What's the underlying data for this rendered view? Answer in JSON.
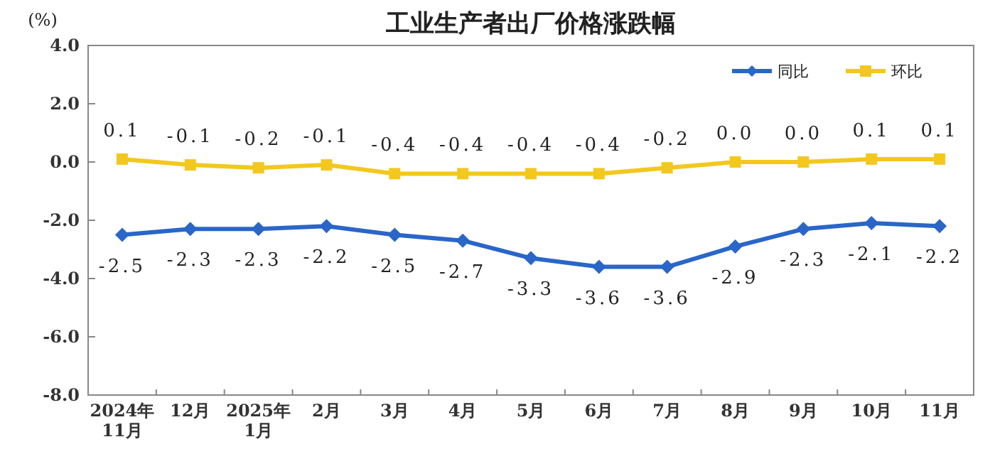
{
  "chart_data": {
    "type": "line",
    "title": "工业生产者出厂价格涨跌幅",
    "ylabel": "(%)",
    "categories": [
      "2024年\n11月",
      "12月",
      "2025年\n1月",
      "2月",
      "3月",
      "4月",
      "5月",
      "6月",
      "7月",
      "8月",
      "9月",
      "10月",
      "11月"
    ],
    "series": [
      {
        "name": "同比",
        "color": "#2a66c8",
        "marker": "diamond",
        "values": [
          -2.5,
          -2.3,
          -2.3,
          -2.2,
          -2.5,
          -2.7,
          -3.3,
          -3.6,
          -3.6,
          -2.9,
          -2.3,
          -2.1,
          -2.2
        ],
        "value_labels": [
          "-2.5",
          "-2.3",
          "-2.3",
          "-2.2",
          "-2.5",
          "-2.7",
          "-3.3",
          "-3.6",
          "-3.6",
          "-2.9",
          "-2.3",
          "-2.1",
          "-2.2"
        ]
      },
      {
        "name": "环比",
        "color": "#f2c81e",
        "marker": "square",
        "values": [
          0.1,
          -0.1,
          -0.2,
          -0.1,
          -0.4,
          -0.4,
          -0.4,
          -0.4,
          -0.2,
          0.0,
          0.0,
          0.1,
          0.1
        ],
        "value_labels": [
          "0.1",
          "-0.1",
          "-0.2",
          "-0.1",
          "-0.4",
          "-0.4",
          "-0.4",
          "-0.4",
          "-0.2",
          "0.0",
          "0.0",
          "0.1",
          "0.1"
        ]
      }
    ],
    "ylim": [
      -8,
      4
    ],
    "yticks": [
      {
        "value": 4,
        "label": "4.0"
      },
      {
        "value": 2,
        "label": "2.0"
      },
      {
        "value": 0,
        "label": "0.0"
      },
      {
        "value": -2,
        "label": "-2.0"
      },
      {
        "value": -4,
        "label": "-4.0"
      },
      {
        "value": -6,
        "label": "-6.0"
      },
      {
        "value": -8,
        "label": "-8.0"
      }
    ],
    "legend": "top right",
    "grid": false,
    "line_style": "solid"
  }
}
